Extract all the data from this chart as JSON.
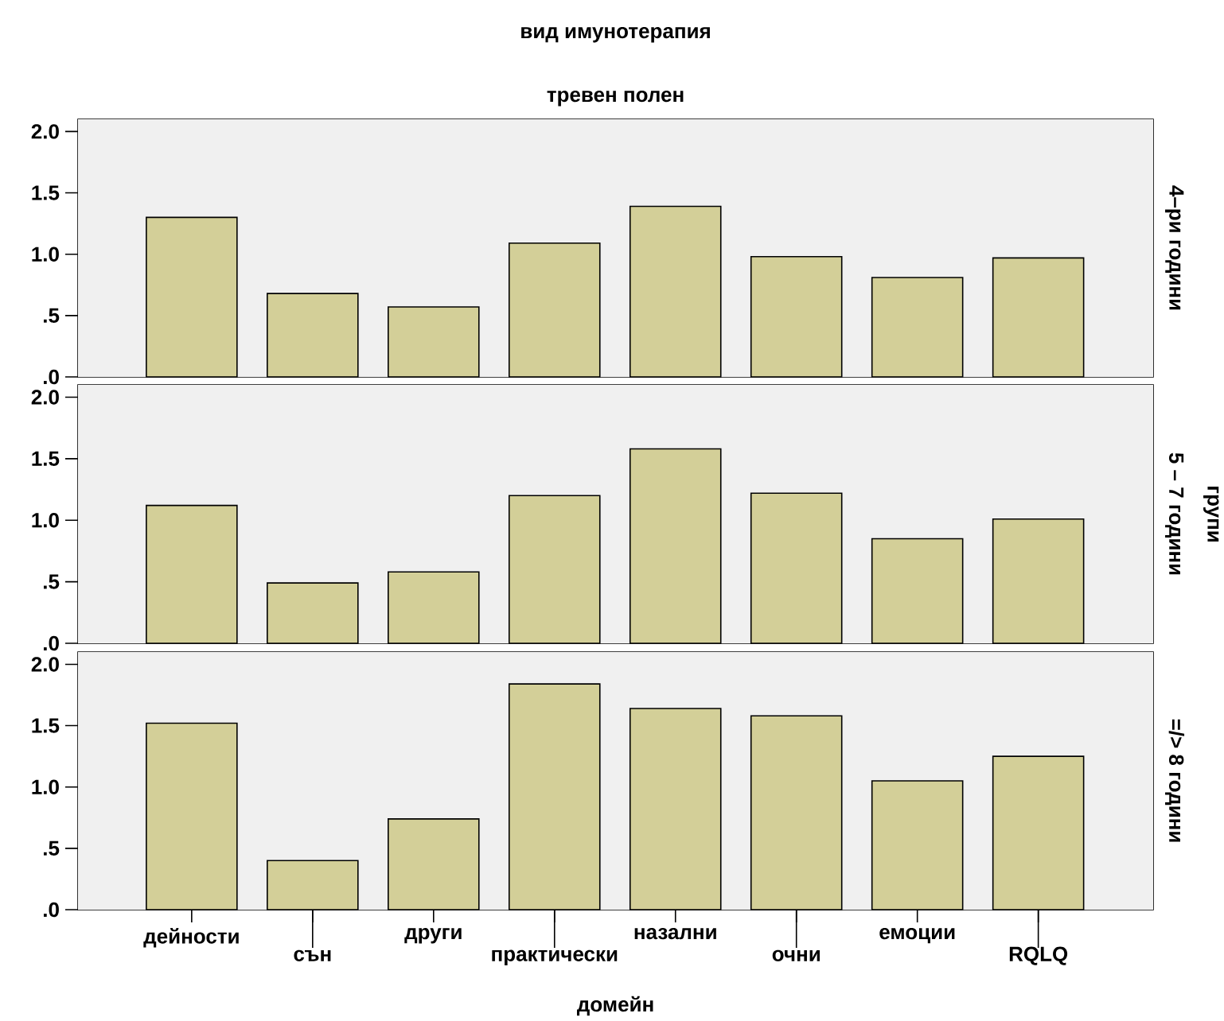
{
  "chart_data": [
    {
      "type": "bar",
      "title": "вид имунотерапия",
      "subtitle": "тревен полен",
      "y2label": "4–ри години",
      "categories": [
        null,
        null,
        null,
        null,
        null,
        null,
        null,
        null
      ],
      "values": [
        1.3,
        0.68,
        0.57,
        1.09,
        1.39,
        0.98,
        0.81,
        0.97
      ],
      "color": "#d3cf98",
      "ylim": [
        0,
        2.1
      ],
      "yticks": [
        {
          "value": 0,
          "label": ".0"
        },
        {
          "value": 0.5,
          "label": ".5"
        },
        {
          "value": 1,
          "label": "1.0"
        },
        {
          "value": 1.5,
          "label": "1.5"
        },
        {
          "value": 2,
          "label": "2.0"
        }
      ],
      "tick_labels": "y"
    },
    {
      "type": "bar",
      "y2label": "5 – 7 години",
      "annotations": [
        "групи"
      ],
      "categories": [
        null,
        null,
        null,
        null,
        null,
        null,
        null,
        null
      ],
      "values": [
        1.12,
        0.49,
        0.58,
        1.2,
        1.58,
        1.22,
        0.85,
        1.01
      ],
      "color": "#d3cf98",
      "ylim": [
        0,
        2.1
      ],
      "yticks": [
        {
          "value": 0,
          "label": ".0"
        },
        {
          "value": 0.5,
          "label": ".5"
        },
        {
          "value": 1,
          "label": "1.0"
        },
        {
          "value": 1.5,
          "label": "1.5"
        },
        {
          "value": 2,
          "label": "2.0"
        }
      ],
      "tick_labels": "y"
    },
    {
      "type": "bar",
      "y2label": "=/> 8 години",
      "xlabel": "домейн",
      "categories": [
        "дейности",
        "сън",
        "други",
        "практически",
        "назални",
        "очни",
        "емоции",
        "RQLQ"
      ],
      "values": [
        1.52,
        0.4,
        0.74,
        1.84,
        1.64,
        1.58,
        1.05,
        1.25
      ],
      "color": "#d3cf98",
      "ylim": [
        0,
        2.1
      ],
      "yticks": [
        {
          "value": 0,
          "label": ".0"
        },
        {
          "value": 0.5,
          "label": ".5"
        },
        {
          "value": 1,
          "label": "1.0"
        },
        {
          "value": 1.5,
          "label": "1.5"
        },
        {
          "value": 2,
          "label": "2.0"
        }
      ]
    }
  ]
}
